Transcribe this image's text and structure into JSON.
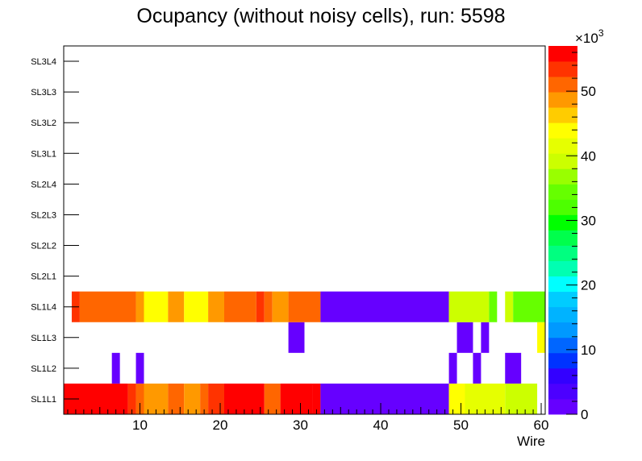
{
  "chart_data": {
    "type": "heatmap",
    "title": "Ocupancy (without noisy cells), run: 5598",
    "xlabel": "Wire",
    "ylabel": "",
    "xlim": [
      0.5,
      60.5
    ],
    "x_ticks": [
      10,
      20,
      30,
      40,
      50,
      60
    ],
    "x_tick_labels": [
      "10",
      "20",
      "30",
      "40",
      "50",
      "60"
    ],
    "y_categories": [
      "SL1L1",
      "SL1L2",
      "SL1L3",
      "SL1L4",
      "SL2L1",
      "SL2L2",
      "SL2L3",
      "SL2L4",
      "SL3L1",
      "SL3L2",
      "SL3L3",
      "SL3L4"
    ],
    "z_range": [
      0,
      57000
    ],
    "z_ticks": [
      0,
      10,
      20,
      30,
      40,
      50
    ],
    "z_multiplier": "×10",
    "z_multiplier_exp": "3",
    "palette": [
      "#6600ff",
      "#4c00ff",
      "#3300ff",
      "#0033ff",
      "#0066ff",
      "#0099ff",
      "#00b3ff",
      "#00ccff",
      "#00ffff",
      "#00ffb2",
      "#00ff80",
      "#00ff4c",
      "#00ff00",
      "#4dff00",
      "#66ff00",
      "#99ff00",
      "#ccff00",
      "#e6ff00",
      "#ffff00",
      "#ffcc00",
      "#ff9900",
      "#ff6600",
      "#ff3300",
      "#ff0000"
    ],
    "rows": [
      {
        "layer": "SL1L1",
        "segments": [
          {
            "from": 1,
            "to": 8,
            "value": 56000
          },
          {
            "from": 9,
            "to": 9,
            "value": 53000
          },
          {
            "from": 10,
            "to": 10,
            "value": 51000
          },
          {
            "from": 11,
            "to": 13,
            "value": 49500
          },
          {
            "from": 14,
            "to": 15,
            "value": 51500
          },
          {
            "from": 16,
            "to": 17,
            "value": 49000
          },
          {
            "from": 18,
            "to": 18,
            "value": 51000
          },
          {
            "from": 19,
            "to": 20,
            "value": 54000
          },
          {
            "from": 21,
            "to": 25,
            "value": 56000
          },
          {
            "from": 26,
            "to": 27,
            "value": 51500
          },
          {
            "from": 28,
            "to": 31,
            "value": 55000
          },
          {
            "from": 32,
            "to": 32,
            "value": 56500
          },
          {
            "from": 33,
            "to": 48,
            "value": 1500
          },
          {
            "from": 49,
            "to": 50,
            "value": 45000
          },
          {
            "from": 51,
            "to": 55,
            "value": 42500
          },
          {
            "from": 56,
            "to": 59,
            "value": 38000
          }
        ]
      },
      {
        "layer": "SL1L2",
        "segments": [
          {
            "from": 7,
            "to": 7,
            "value": 1500
          },
          {
            "from": 10,
            "to": 10,
            "value": 1500
          },
          {
            "from": 49,
            "to": 49,
            "value": 1500
          },
          {
            "from": 52,
            "to": 52,
            "value": 1500
          },
          {
            "from": 56,
            "to": 57,
            "value": 1500
          }
        ]
      },
      {
        "layer": "SL1L3",
        "segments": [
          {
            "from": 29,
            "to": 30,
            "value": 1500
          },
          {
            "from": 50,
            "to": 51,
            "value": 1500
          },
          {
            "from": 53,
            "to": 53,
            "value": 1500
          },
          {
            "from": 60,
            "to": 60,
            "value": 45000
          }
        ]
      },
      {
        "layer": "SL1L4",
        "segments": [
          {
            "from": 2,
            "to": 2,
            "value": 54000
          },
          {
            "from": 3,
            "to": 9,
            "value": 51500
          },
          {
            "from": 10,
            "to": 10,
            "value": 49000
          },
          {
            "from": 11,
            "to": 13,
            "value": 45000
          },
          {
            "from": 14,
            "to": 15,
            "value": 49000
          },
          {
            "from": 16,
            "to": 18,
            "value": 45000
          },
          {
            "from": 19,
            "to": 20,
            "value": 49000
          },
          {
            "from": 21,
            "to": 24,
            "value": 51500
          },
          {
            "from": 25,
            "to": 25,
            "value": 54000
          },
          {
            "from": 26,
            "to": 26,
            "value": 51500
          },
          {
            "from": 27,
            "to": 28,
            "value": 49000
          },
          {
            "from": 29,
            "to": 32,
            "value": 51500
          },
          {
            "from": 33,
            "to": 48,
            "value": 1500
          },
          {
            "from": 49,
            "to": 53,
            "value": 38000
          },
          {
            "from": 54,
            "to": 54,
            "value": 35000
          },
          {
            "from": 56,
            "to": 56,
            "value": 38000
          },
          {
            "from": 57,
            "to": 60,
            "value": 35000
          }
        ]
      },
      {
        "layer": "SL2L1",
        "segments": []
      },
      {
        "layer": "SL2L2",
        "segments": []
      },
      {
        "layer": "SL2L3",
        "segments": []
      },
      {
        "layer": "SL2L4",
        "segments": []
      },
      {
        "layer": "SL3L1",
        "segments": []
      },
      {
        "layer": "SL3L2",
        "segments": []
      },
      {
        "layer": "SL3L3",
        "segments": []
      },
      {
        "layer": "SL3L4",
        "segments": []
      }
    ]
  }
}
